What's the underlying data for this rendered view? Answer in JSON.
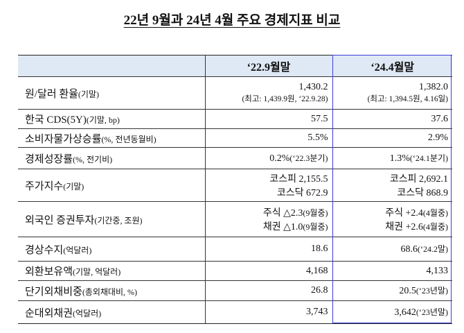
{
  "title": "22년 9월과 24년 4월 주요 경제지표 비교",
  "columns": [
    "‘22.9월말",
    "‘24.4월말"
  ],
  "rows": [
    {
      "label": "원/달러 환율",
      "unit": "(기말)",
      "c1": "1,430.2",
      "c1_sub": "(최고: 1,439.9원, ‘22.9.28)",
      "c2": "1,382.0",
      "c2_sub": "(최고: 1,394.5원, 4.16일)"
    },
    {
      "label": "한국 CDS(5Y)",
      "unit": "(기말, bp)",
      "c1": "57.5",
      "c2": "37.6"
    },
    {
      "label": "소비자물가상승률",
      "unit": "(%, 전년동월비)",
      "c1": "5.5%",
      "c2": "2.9%"
    },
    {
      "label": "경제성장률",
      "unit": "(%, 전기비)",
      "c1": "0.2%",
      "c1_note": "(‘22.3분기)",
      "c2": "1.3%",
      "c2_note": "(‘24.1분기)"
    },
    {
      "label": "주가지수",
      "unit": "(기말)",
      "c1": "코스피 2,155.5",
      "c1_b": "코스닥 672.9",
      "c2": "코스피 2,692.1",
      "c2_b": "코스닥 868.9"
    },
    {
      "label": "외국인 증권투자",
      "unit": "(기간중, 조원)",
      "c1": "주식 △2.3",
      "c1_note": "(9월중)",
      "c1_b": "채권 △1.0",
      "c1_b_note": "(9월중)",
      "c2": "주식 +2.4",
      "c2_note": "(4월중)",
      "c2_b": "채권 +2.6",
      "c2_b_note": "(4월중)"
    },
    {
      "label": "경상수지",
      "unit": "(억달러)",
      "c1": "18.6",
      "c2": "68.6",
      "c2_note": "(‘24.2말)"
    },
    {
      "label": "외환보유액",
      "unit": "(기말, 억달러)",
      "c1": "4,168",
      "c2": "4,133"
    },
    {
      "label": "단기외채비중",
      "unit": "(총외채대비, %)",
      "c1": "26.8",
      "c2": "20.5",
      "c2_note": "(‘23년말)"
    },
    {
      "label": "순대외채권",
      "unit": "(억달러)",
      "c1": "3,743",
      "c2": "3,642",
      "c2_note": "(‘23년말)"
    }
  ]
}
